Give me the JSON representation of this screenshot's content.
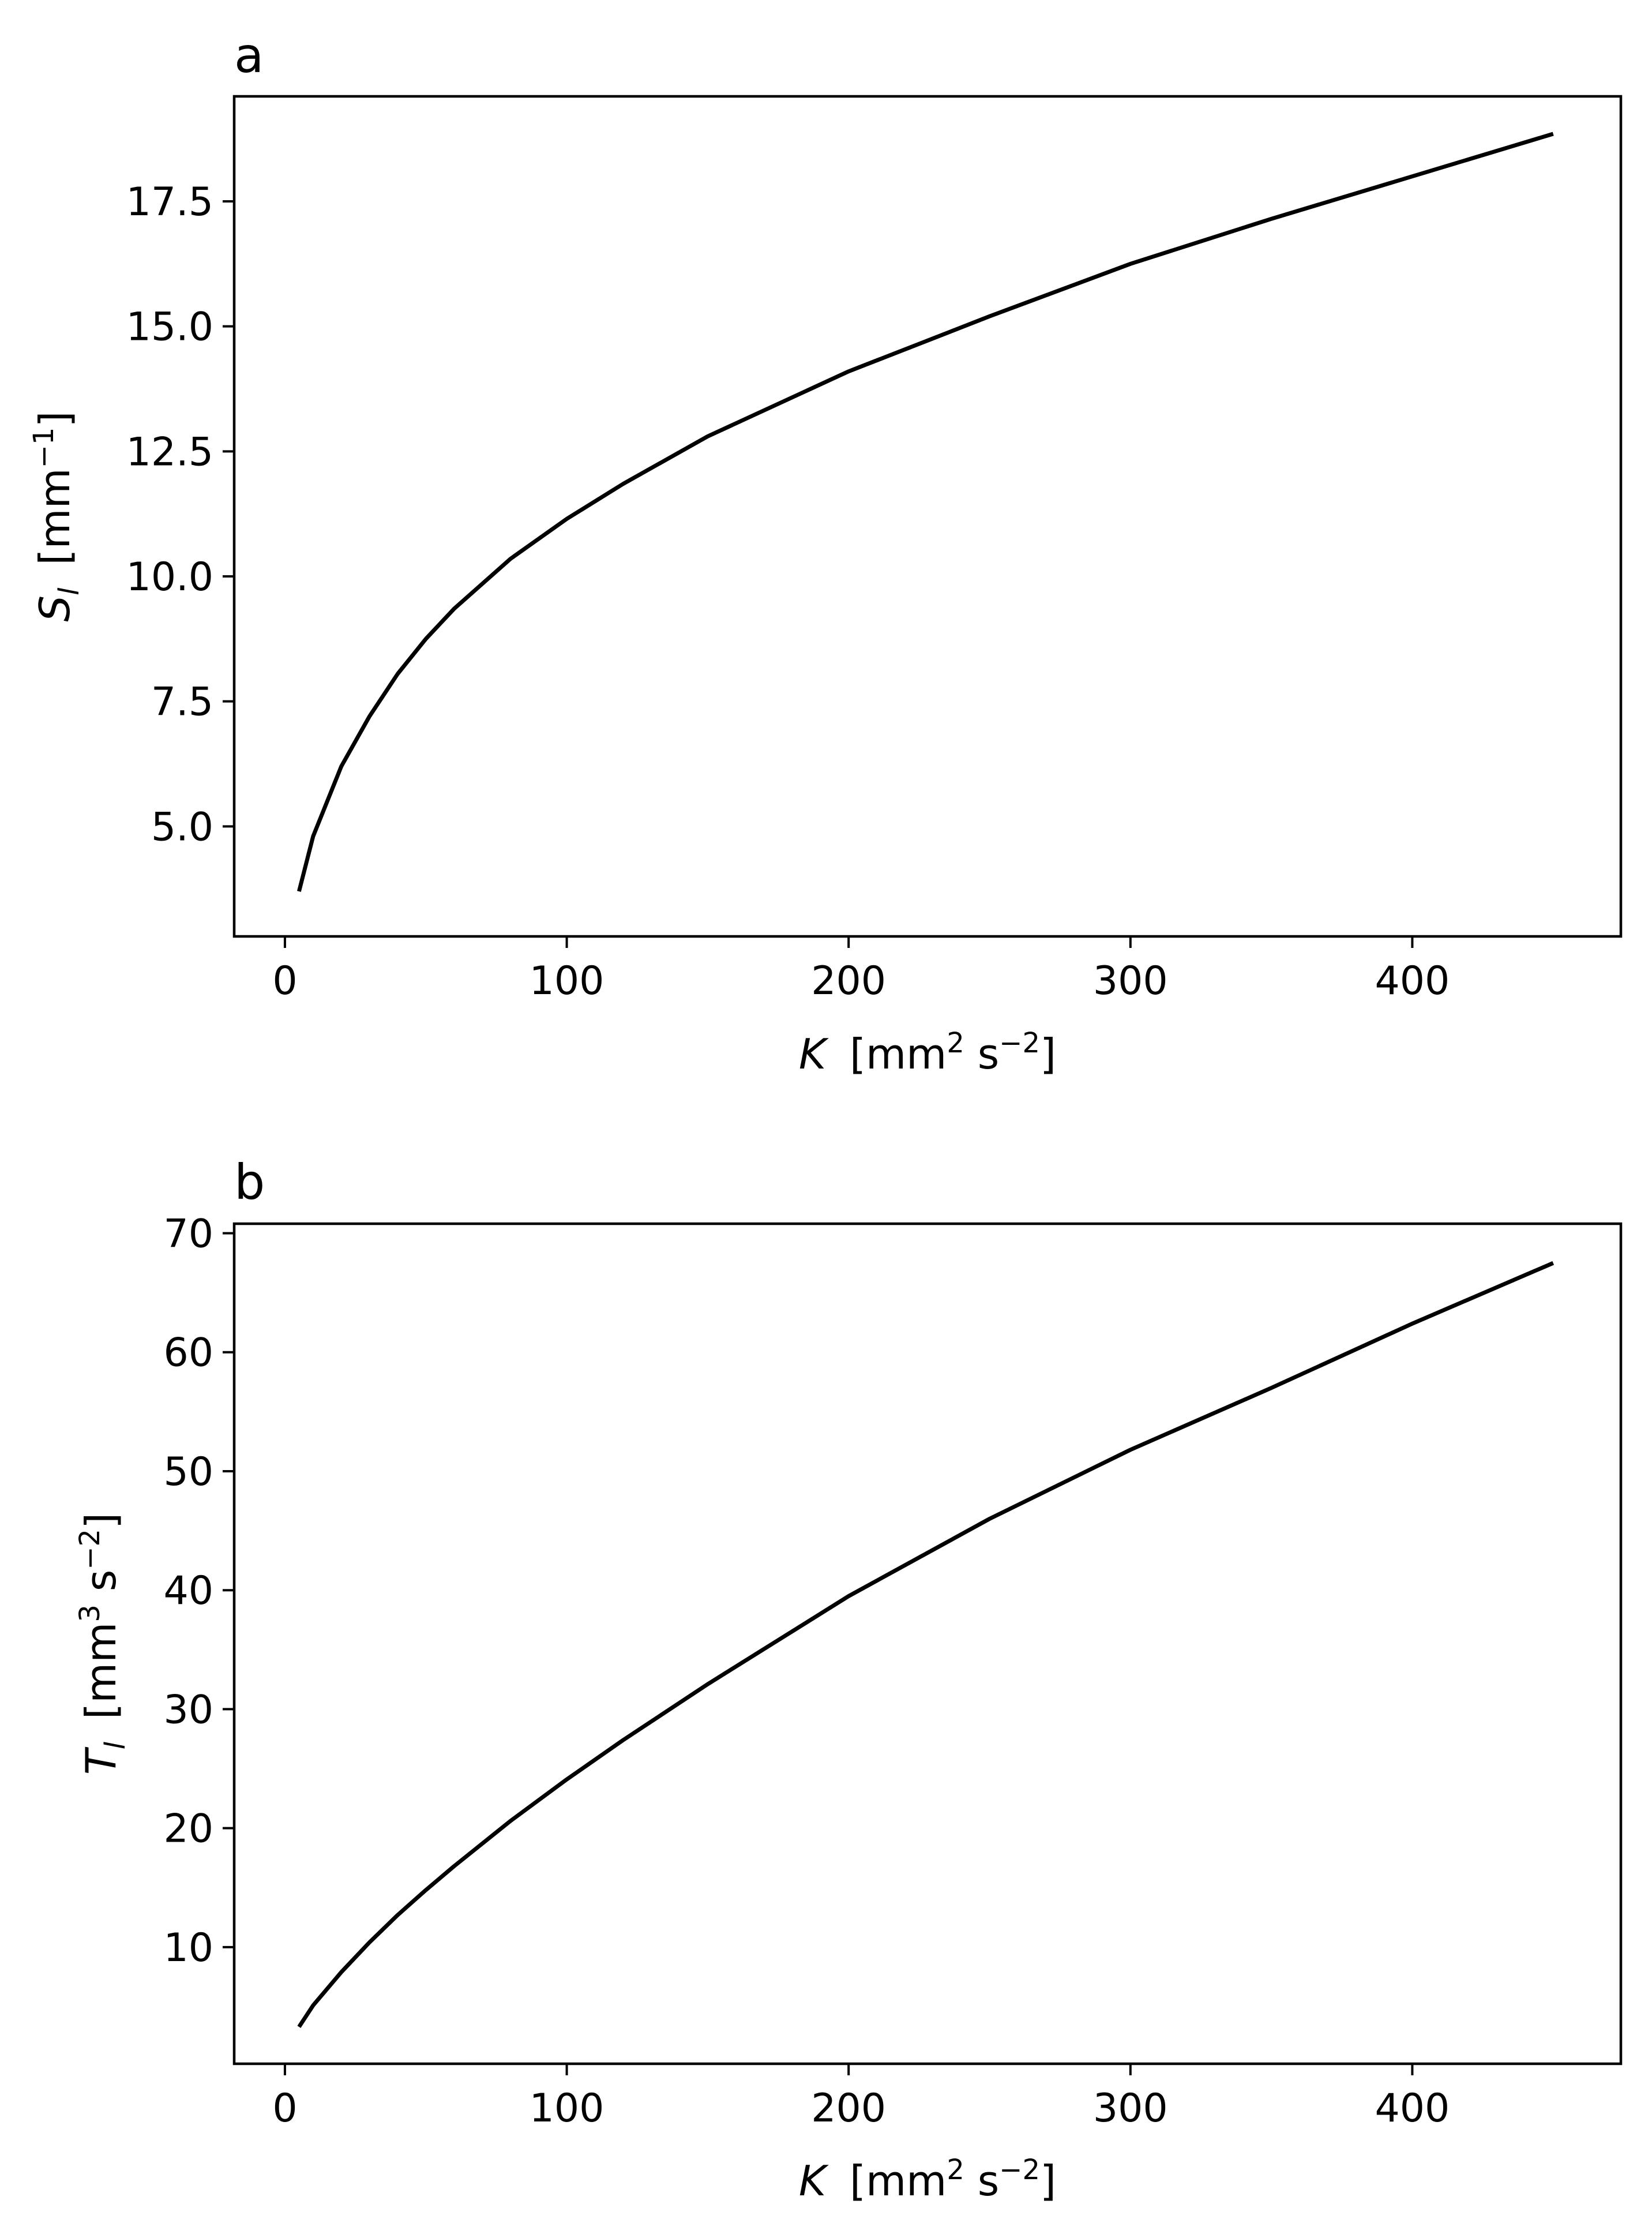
{
  "chart_data": [
    {
      "type": "line",
      "panel_label": "a",
      "xlabel": {
        "symbol": "K",
        "text": "[mm",
        "sup1": "2",
        "mid": " s",
        "sup2": "−2",
        "end": "]"
      },
      "ylabel": {
        "symbol": "S",
        "sub": "l",
        "text": "[mm",
        "sup1": "−1",
        "end": "]"
      },
      "xlim": [
        -18,
        474
      ],
      "ylim": [
        2.8,
        19.6
      ],
      "xticks": [
        0,
        100,
        200,
        300,
        400
      ],
      "xtick_labels": [
        "0",
        "100",
        "200",
        "300",
        "400"
      ],
      "yticks": [
        5.0,
        7.5,
        10.0,
        12.5,
        15.0,
        17.5
      ],
      "ytick_labels": [
        "5.0",
        "7.5",
        "10.0",
        "12.5",
        "15.0",
        "17.5"
      ],
      "grid": false,
      "line_color": "#000000",
      "series": [
        {
          "x": [
            5,
            10,
            20,
            30,
            40,
            50,
            60,
            80,
            100,
            120,
            150,
            200,
            250,
            300,
            350,
            400,
            450
          ],
          "y": [
            3.7,
            4.8,
            6.2,
            7.2,
            8.05,
            8.75,
            9.35,
            10.35,
            11.15,
            11.85,
            12.8,
            14.1,
            15.2,
            16.25,
            17.15,
            18.0,
            18.85
          ]
        }
      ]
    },
    {
      "type": "line",
      "panel_label": "b",
      "xlabel": {
        "symbol": "K",
        "text": "[mm",
        "sup1": "2",
        "mid": " s",
        "sup2": "−2",
        "end": "]"
      },
      "ylabel": {
        "symbol": "T",
        "sub": "l",
        "text": "[mm",
        "sup1": "3",
        "mid": " s",
        "sup2": "−2",
        "end": "]"
      },
      "xlim": [
        -18,
        474
      ],
      "ylim": [
        0.2,
        70.8
      ],
      "xticks": [
        0,
        100,
        200,
        300,
        400
      ],
      "xtick_labels": [
        "0",
        "100",
        "200",
        "300",
        "400"
      ],
      "yticks": [
        10,
        20,
        30,
        40,
        50,
        60,
        70
      ],
      "ytick_labels": [
        "10",
        "20",
        "30",
        "40",
        "50",
        "60",
        "70"
      ],
      "grid": false,
      "line_color": "#000000",
      "series": [
        {
          "x": [
            5,
            10,
            20,
            30,
            40,
            50,
            60,
            80,
            100,
            120,
            150,
            200,
            250,
            300,
            350,
            400,
            450
          ],
          "y": [
            3.3,
            5.1,
            7.9,
            10.4,
            12.7,
            14.8,
            16.8,
            20.6,
            24.1,
            27.4,
            32.1,
            39.5,
            46.0,
            51.8,
            57.0,
            62.4,
            67.5
          ]
        }
      ]
    }
  ]
}
